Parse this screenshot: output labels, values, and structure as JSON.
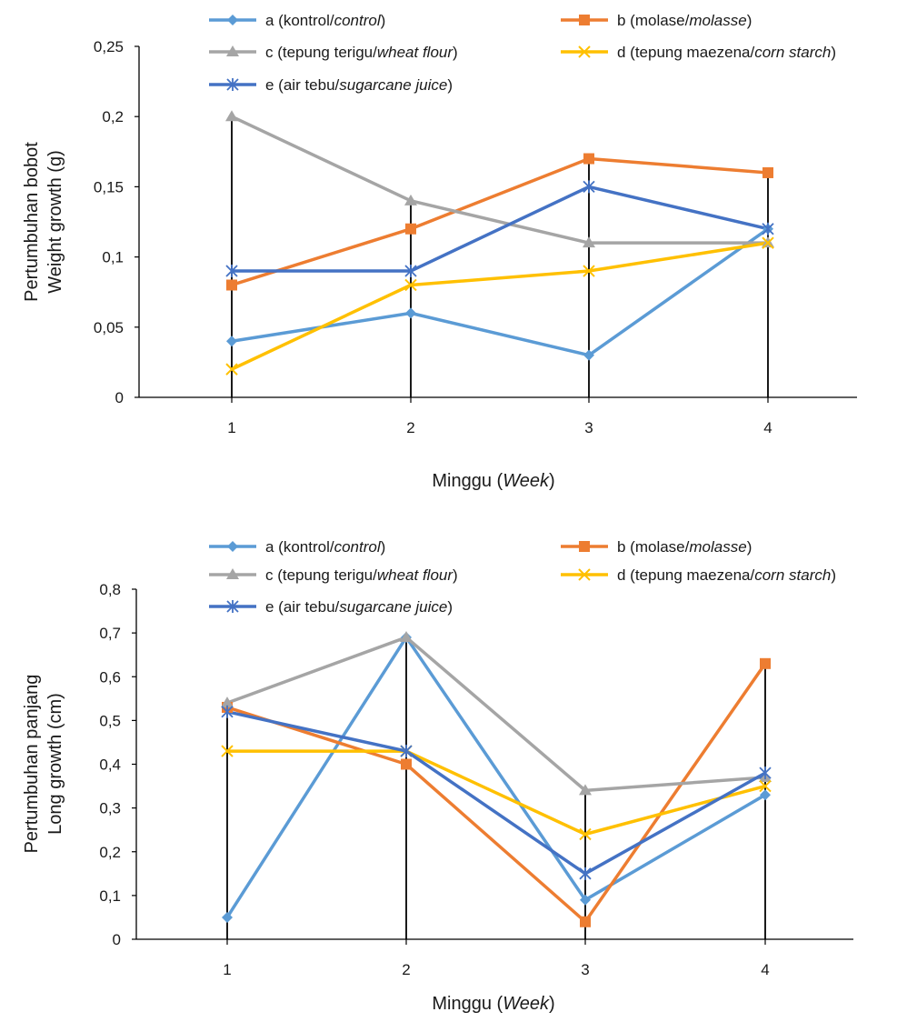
{
  "chart_data": [
    {
      "type": "line",
      "xlabel": [
        "Minggu (",
        "Week",
        ")"
      ],
      "ylabel": [
        "Pertumbuhan bobot",
        "Weight growth (g)"
      ],
      "categories": [
        "1",
        "2",
        "3",
        "4"
      ],
      "ylim": [
        0,
        0.25
      ],
      "yticks": [
        "0",
        "0,05",
        "0,1",
        "0,15",
        "0,2",
        "0,25"
      ],
      "legend_position": "top",
      "series": [
        {
          "name": [
            "a (kontrol/",
            "control",
            ")"
          ],
          "marker": "diamond",
          "color": "#5b9bd5",
          "values": [
            0.04,
            0.06,
            0.03,
            0.12
          ]
        },
        {
          "name": [
            "b (molase/",
            "molasse",
            ")"
          ],
          "marker": "square",
          "color": "#ed7d31",
          "values": [
            0.08,
            0.12,
            0.17,
            0.16
          ]
        },
        {
          "name": [
            "c (tepung terigu/",
            "wheat flour",
            ")"
          ],
          "marker": "triangle",
          "color": "#a5a5a5",
          "values": [
            0.2,
            0.14,
            0.11,
            0.11
          ]
        },
        {
          "name": [
            "d (tepung maezena/",
            "corn starch",
            ")"
          ],
          "marker": "x",
          "color": "#ffc000",
          "values": [
            0.02,
            0.08,
            0.09,
            0.11
          ]
        },
        {
          "name": [
            "e (air tebu/",
            "sugarcane juice",
            ")"
          ],
          "marker": "star",
          "color": "#4472c4",
          "values": [
            0.09,
            0.09,
            0.15,
            0.12
          ]
        }
      ]
    },
    {
      "type": "line",
      "xlabel": [
        "Minggu (",
        "Week",
        ")"
      ],
      "ylabel": [
        "Pertumbuhan panjang",
        "Long growth (cm)"
      ],
      "categories": [
        "1",
        "2",
        "3",
        "4"
      ],
      "ylim": [
        0,
        0.8
      ],
      "yticks": [
        "0",
        "0,1",
        "0,2",
        "0,3",
        "0,4",
        "0,5",
        "0,6",
        "0,7",
        "0,8"
      ],
      "legend_position": "top",
      "series": [
        {
          "name": [
            "a (kontrol/",
            "control",
            ")"
          ],
          "marker": "diamond",
          "color": "#5b9bd5",
          "values": [
            0.05,
            0.69,
            0.09,
            0.33
          ]
        },
        {
          "name": [
            "b (molase/",
            "molasse",
            ")"
          ],
          "marker": "square",
          "color": "#ed7d31",
          "values": [
            0.53,
            0.4,
            0.04,
            0.63
          ]
        },
        {
          "name": [
            "c (tepung terigu/",
            "wheat flour",
            ")"
          ],
          "marker": "triangle",
          "color": "#a5a5a5",
          "values": [
            0.54,
            0.69,
            0.34,
            0.37
          ]
        },
        {
          "name": [
            "d (tepung maezena/",
            "corn starch",
            ")"
          ],
          "marker": "x",
          "color": "#ffc000",
          "values": [
            0.43,
            0.43,
            0.24,
            0.35
          ]
        },
        {
          "name": [
            "e (air tebu/",
            "sugarcane juice",
            ")"
          ],
          "marker": "star",
          "color": "#4472c4",
          "values": [
            0.52,
            0.43,
            0.15,
            0.38
          ]
        }
      ]
    }
  ]
}
